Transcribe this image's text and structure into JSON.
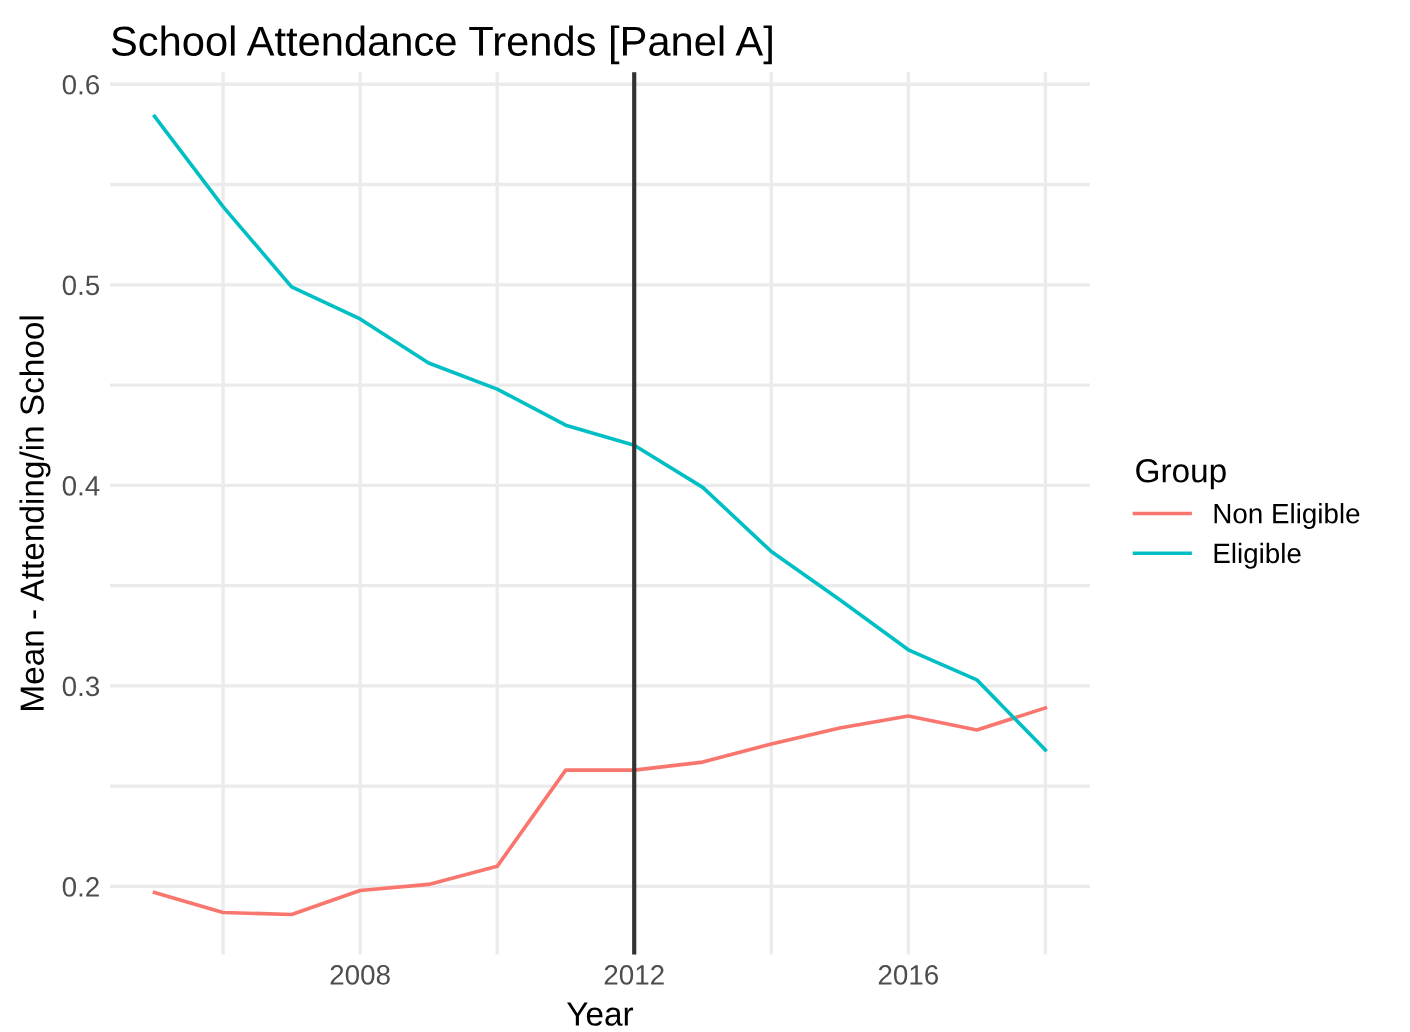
{
  "chart_data": {
    "type": "line",
    "title": "School Attendance Trends [Panel A]",
    "xlabel": "Year",
    "ylabel": "Mean - Attending/in School",
    "legend_title": "Group",
    "legend": "right",
    "grid": true,
    "x": [
      2005,
      2006,
      2007,
      2008,
      2009,
      2010,
      2011,
      2012,
      2013,
      2014,
      2015,
      2016,
      2017,
      2018
    ],
    "series": [
      {
        "name": "Non Eligible",
        "color": "#f8766d",
        "values": [
          0.197,
          0.187,
          0.186,
          0.198,
          0.201,
          0.21,
          0.258,
          0.258,
          0.262,
          0.271,
          0.279,
          0.285,
          0.278,
          0.289
        ]
      },
      {
        "name": "Eligible",
        "color": "#00bfc4",
        "values": [
          0.584,
          0.539,
          0.499,
          0.483,
          0.461,
          0.448,
          0.43,
          0.42,
          0.399,
          0.367,
          0.343,
          0.318,
          0.303,
          0.268
        ]
      }
    ],
    "xlim": [
      2004.35,
      2018.65
    ],
    "ylim": [
      0.166,
      0.606
    ],
    "xticks": [
      {
        "value": 2006,
        "label": null
      },
      2008,
      {
        "value": 2010,
        "label": null
      },
      2012,
      {
        "value": 2014,
        "label": null
      },
      2016,
      {
        "value": 2018,
        "label": null
      }
    ],
    "yticks": [
      0.2,
      {
        "value": 0.25,
        "label": null
      },
      0.3,
      {
        "value": 0.35,
        "label": null
      },
      0.4,
      {
        "value": 0.45,
        "label": null
      },
      0.5,
      {
        "value": 0.55,
        "label": null
      },
      0.6
    ],
    "ref_lines": [
      {
        "axis": "x",
        "value": 2012,
        "color": "#333333"
      }
    ],
    "line_style": "solid",
    "marker": "none"
  }
}
